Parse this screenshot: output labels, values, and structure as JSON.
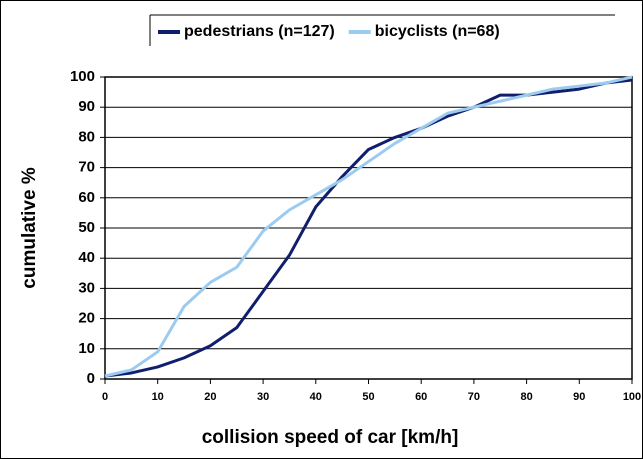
{
  "chart_data": {
    "type": "line",
    "x_label": "collision speed of car [km/h]",
    "y_label": "cumulative %",
    "x": [
      0,
      5,
      10,
      15,
      20,
      25,
      30,
      35,
      40,
      45,
      50,
      55,
      60,
      65,
      70,
      75,
      80,
      85,
      90,
      95,
      100
    ],
    "series": [
      {
        "name": "pedestrians (n=127)",
        "color": "#101e6e",
        "values": [
          1,
          2,
          4,
          7,
          11,
          17,
          29,
          41,
          57,
          67,
          76,
          80,
          83,
          87,
          90,
          94,
          94,
          95,
          96,
          98,
          99
        ]
      },
      {
        "name": "bicyclists (n=68)",
        "color": "#9ccbf0",
        "values": [
          1,
          3,
          9,
          24,
          32,
          37,
          49,
          56,
          61,
          66,
          72,
          78,
          83,
          88,
          90,
          92,
          94,
          96,
          97,
          98,
          100
        ]
      }
    ],
    "xlim": [
      0,
      100
    ],
    "xticks": [
      0,
      10,
      20,
      30,
      40,
      50,
      60,
      70,
      80,
      90,
      100
    ],
    "ylim": [
      0,
      100
    ],
    "yticks": [
      0,
      10,
      20,
      30,
      40,
      50,
      60,
      70,
      80,
      90,
      100
    ],
    "grid": true,
    "legend": "top"
  }
}
